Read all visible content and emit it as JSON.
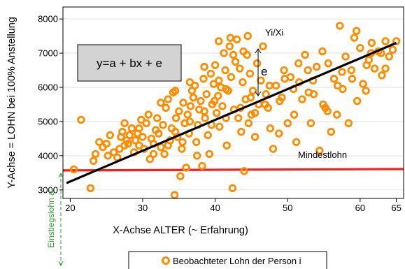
{
  "chart_data": {
    "type": "scatter",
    "ylabel": "Y-Achse = LOHN bei 100% Anstellung",
    "xlabel": "X-Achse ALTER (~ Erfahrung)",
    "xlim": [
      19,
      66
    ],
    "ylim": [
      2750,
      8350
    ],
    "x_ticks": [
      20,
      30,
      40,
      50,
      60,
      65
    ],
    "y_ticks": [
      3000,
      4000,
      5000,
      6000,
      7000,
      8000
    ],
    "grid": "horizontal",
    "marker_color": "#ff8c00",
    "regression_line": {
      "x": [
        19.5,
        65
      ],
      "y": [
        3200,
        7300
      ],
      "color": "#000000"
    },
    "mindestlohn_line": {
      "x": [
        19,
        66
      ],
      "y": [
        3570,
        3610
      ],
      "color": "#ff1a1a",
      "label": "Mindestlohn"
    },
    "formula": "y=a + bx + e",
    "residual_label": "e",
    "point_label": "Yi/Xi",
    "intercept_label": "Einstiegslohn a",
    "legend": {
      "label": "Beobachteter Lohn der Person i",
      "position": "bottom"
    },
    "points": [
      [
        20.5,
        3600
      ],
      [
        21.5,
        5050
      ],
      [
        22.8,
        3050
      ],
      [
        23.2,
        3850
      ],
      [
        23.5,
        4050
      ],
      [
        24.0,
        4400
      ],
      [
        24.5,
        4250
      ],
      [
        25.0,
        4350
      ],
      [
        25.2,
        4000
      ],
      [
        26.0,
        4100
      ],
      [
        26.5,
        3950
      ],
      [
        26.8,
        4200
      ],
      [
        27.0,
        4550
      ],
      [
        27.2,
        4700
      ],
      [
        27.5,
        4950
      ],
      [
        27.8,
        4450
      ],
      [
        28.0,
        4350
      ],
      [
        28.2,
        4600
      ],
      [
        28.5,
        4800
      ],
      [
        28.8,
        4100
      ],
      [
        29.0,
        4450
      ],
      [
        29.3,
        4650
      ],
      [
        29.5,
        4300
      ],
      [
        29.8,
        5050
      ],
      [
        30.0,
        4550
      ],
      [
        30.2,
        4200
      ],
      [
        30.5,
        4950
      ],
      [
        30.8,
        5200
      ],
      [
        31.0,
        3900
      ],
      [
        31.2,
        4500
      ],
      [
        31.5,
        4350
      ],
      [
        31.8,
        4750
      ],
      [
        32.0,
        5100
      ],
      [
        32.2,
        4650
      ],
      [
        32.5,
        4250
      ],
      [
        32.8,
        4900
      ],
      [
        33.0,
        4050
      ],
      [
        33.2,
        5400
      ],
      [
        33.5,
        5650
      ],
      [
        33.8,
        4450
      ],
      [
        34.0,
        4800
      ],
      [
        34.2,
        5850
      ],
      [
        34.4,
        2850
      ],
      [
        34.6,
        5100
      ],
      [
        34.8,
        4550
      ],
      [
        35.0,
        5300
      ],
      [
        35.2,
        3400
      ],
      [
        35.4,
        4200
      ],
      [
        35.6,
        5550
      ],
      [
        35.8,
        4950
      ],
      [
        36.0,
        3650
      ],
      [
        36.2,
        5200
      ],
      [
        36.4,
        4650
      ],
      [
        36.6,
        5450
      ],
      [
        36.8,
        5900
      ],
      [
        37.0,
        5700
      ],
      [
        37.2,
        6050
      ],
      [
        37.4,
        4400
      ],
      [
        37.6,
        4900
      ],
      [
        37.8,
        5350
      ],
      [
        38.0,
        5600
      ],
      [
        38.2,
        3700
      ],
      [
        38.4,
        6250
      ],
      [
        38.6,
        5100
      ],
      [
        38.8,
        5800
      ],
      [
        39.0,
        4600
      ],
      [
        39.2,
        4050
      ],
      [
        39.4,
        6400
      ],
      [
        39.6,
        5500
      ],
      [
        39.8,
        6100
      ],
      [
        40.0,
        6650
      ],
      [
        40.2,
        5250
      ],
      [
        40.4,
        5750
      ],
      [
        40.6,
        4850
      ],
      [
        40.8,
        6000
      ],
      [
        41.0,
        5450
      ],
      [
        41.2,
        7000
      ],
      [
        41.4,
        6500
      ],
      [
        41.6,
        4300
      ],
      [
        41.8,
        5900
      ],
      [
        42.0,
        7200
      ],
      [
        42.2,
        6300
      ],
      [
        42.4,
        3050
      ],
      [
        42.6,
        5350
      ],
      [
        42.8,
        6750
      ],
      [
        43.0,
        7400
      ],
      [
        43.2,
        5100
      ],
      [
        43.4,
        6550
      ],
      [
        43.6,
        4700
      ],
      [
        43.8,
        6150
      ],
      [
        44.0,
        3550
      ],
      [
        44.2,
        5650
      ],
      [
        44.4,
        6950
      ],
      [
        44.6,
        4950
      ],
      [
        44.8,
        6400
      ],
      [
        45.0,
        5200
      ],
      [
        45.2,
        5900
      ],
      [
        45.5,
        4550
      ],
      [
        45.8,
        6700
      ],
      [
        46.0,
        5500
      ],
      [
        46.3,
        6200
      ],
      [
        46.6,
        7200
      ],
      [
        47.0,
        5800
      ],
      [
        47.3,
        5400
      ],
      [
        47.6,
        4800
      ],
      [
        48.0,
        4200
      ],
      [
        48.4,
        6050
      ],
      [
        48.8,
        4650
      ],
      [
        49.2,
        5700
      ],
      [
        49.6,
        6250
      ],
      [
        50.0,
        4950
      ],
      [
        50.4,
        6300
      ],
      [
        50.8,
        5950
      ],
      [
        51.2,
        4400
      ],
      [
        51.6,
        6150
      ],
      [
        52.0,
        5650
      ],
      [
        52.4,
        6950
      ],
      [
        52.8,
        6500
      ],
      [
        53.2,
        4950
      ],
      [
        53.6,
        5800
      ],
      [
        54.0,
        6600
      ],
      [
        54.4,
        4150
      ],
      [
        54.8,
        7050
      ],
      [
        55.2,
        5400
      ],
      [
        55.6,
        6700
      ],
      [
        56.0,
        4700
      ],
      [
        56.4,
        6250
      ],
      [
        56.8,
        5200
      ],
      [
        57.2,
        7800
      ],
      [
        57.6,
        5950
      ],
      [
        58.0,
        6900
      ],
      [
        58.4,
        4950
      ],
      [
        58.8,
        6500
      ],
      [
        59.2,
        7450
      ],
      [
        59.6,
        5600
      ],
      [
        60.0,
        7150
      ],
      [
        60.4,
        6100
      ],
      [
        60.8,
        5900
      ],
      [
        61.2,
        6800
      ],
      [
        61.6,
        7300
      ],
      [
        62.0,
        6550
      ],
      [
        62.5,
        7050
      ],
      [
        63.0,
        6350
      ],
      [
        63.5,
        7350
      ],
      [
        64.0,
        6900
      ],
      [
        64.5,
        7100
      ],
      [
        65.0,
        7350
      ],
      [
        42.1,
        7450
      ],
      [
        43.9,
        7050
      ],
      [
        40.5,
        6200
      ],
      [
        38.5,
        5300
      ],
      [
        36.5,
        5000
      ],
      [
        34.5,
        4700
      ],
      [
        39.9,
        5600
      ],
      [
        41.5,
        5950
      ],
      [
        44.9,
        5700
      ],
      [
        46.9,
        5500
      ],
      [
        48.9,
        5600
      ],
      [
        50.9,
        5200
      ],
      [
        52.9,
        5850
      ],
      [
        54.9,
        5500
      ],
      [
        56.9,
        6050
      ],
      [
        58.9,
        6250
      ],
      [
        60.9,
        6650
      ],
      [
        62.9,
        7000
      ],
      [
        33.5,
        4300
      ],
      [
        31.5,
        4050
      ],
      [
        29.5,
        4800
      ],
      [
        27.5,
        4300
      ],
      [
        25.5,
        4600
      ],
      [
        37.5,
        4000
      ],
      [
        35.5,
        4400
      ],
      [
        39.5,
        4900
      ],
      [
        41.5,
        5100
      ],
      [
        43.5,
        5400
      ],
      [
        45.5,
        5250
      ],
      [
        47.5,
        6050
      ],
      [
        49.5,
        6500
      ],
      [
        51.5,
        6700
      ],
      [
        53.5,
        6200
      ],
      [
        55.5,
        5300
      ],
      [
        57.5,
        6450
      ],
      [
        59.5,
        7650
      ],
      [
        61.5,
        7000
      ],
      [
        63.5,
        6550
      ],
      [
        44.5,
        7500
      ],
      [
        42.5,
        6950
      ],
      [
        40.5,
        7350
      ],
      [
        38.5,
        6600
      ],
      [
        36.5,
        6150
      ],
      [
        34.5,
        5900
      ],
      [
        32.5,
        5550
      ]
    ]
  }
}
